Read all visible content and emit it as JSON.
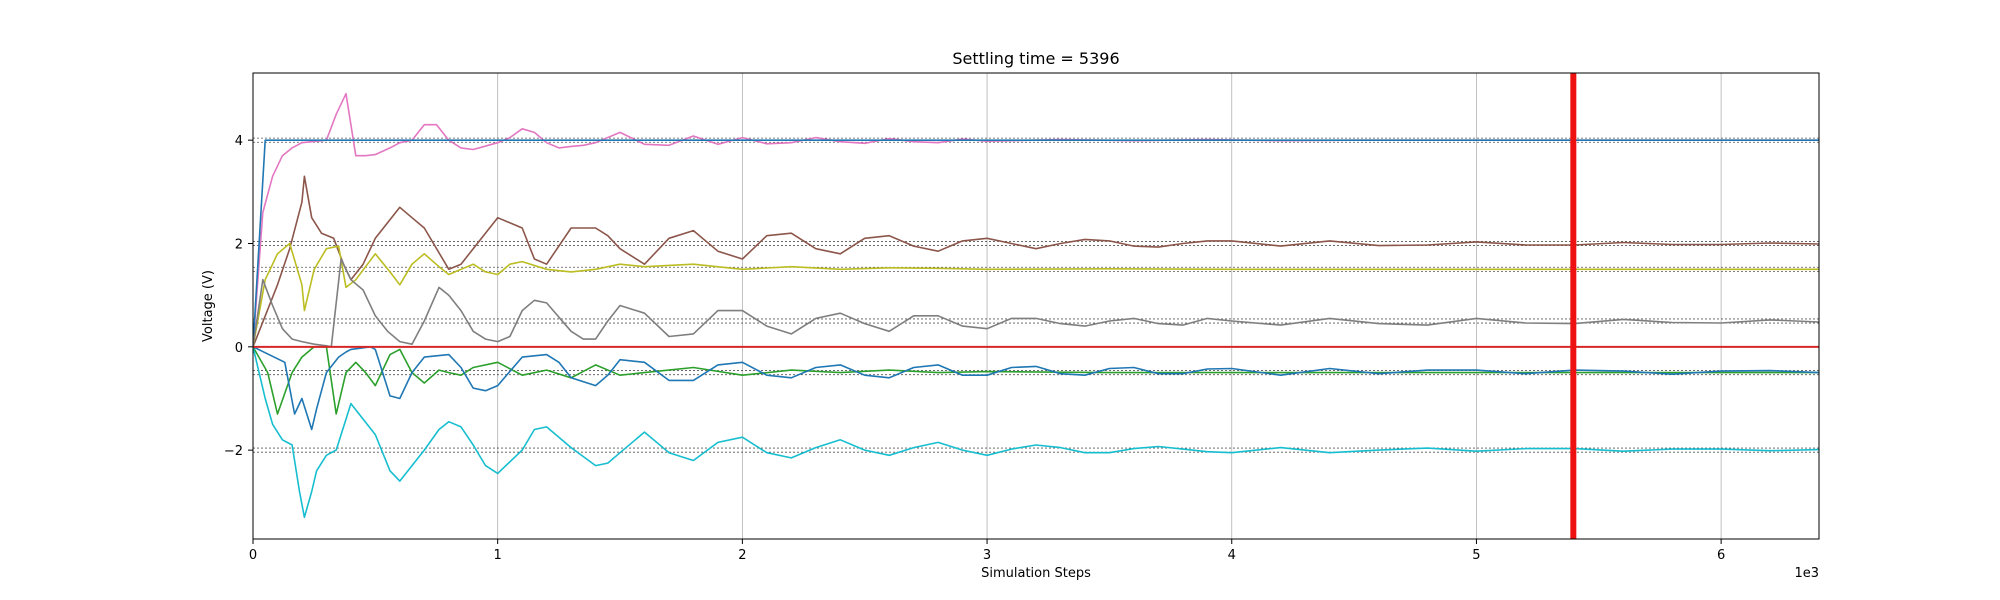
{
  "chart_data": {
    "type": "line",
    "title": "Settling time = 5396",
    "xlabel": "Simulation Steps",
    "ylabel": "Voltage (V)",
    "x_offset_label": "1e3",
    "xlim": [
      0,
      6400
    ],
    "ylim": [
      -3.72,
      5.3
    ],
    "x_ticks": [
      0,
      1000,
      2000,
      3000,
      4000,
      5000,
      6000
    ],
    "x_tick_labels": [
      "0",
      "1",
      "2",
      "3",
      "4",
      "5",
      "6"
    ],
    "y_ticks": [
      -2,
      0,
      2,
      4
    ],
    "y_tick_labels": [
      "−2",
      "0",
      "2",
      "4"
    ],
    "grid": "vertical",
    "legend": "none",
    "settling_time": 5396,
    "targets": [
      4,
      2,
      1.5,
      0.5,
      -0.5,
      -2
    ],
    "zero_line_color": "#d62728",
    "marker_color": "#ee1111",
    "series": [
      {
        "color": "#e377c2",
        "x": [
          0,
          40,
          80,
          120,
          160,
          200,
          260,
          300,
          340,
          380,
          420,
          460,
          500,
          560,
          600,
          650,
          700,
          750,
          800,
          850,
          900,
          1000,
          1050,
          1100,
          1150,
          1200,
          1250,
          1300,
          1350,
          1400,
          1500,
          1600,
          1700,
          1800,
          1900,
          2000,
          2100,
          2200,
          2300,
          2400,
          2500,
          2600,
          2700,
          2800,
          2900,
          3000,
          3300,
          3600,
          3900,
          4200,
          4500,
          5000,
          5500,
          6000,
          6400
        ],
        "y": [
          0,
          2.6,
          3.3,
          3.7,
          3.85,
          3.95,
          3.98,
          4.0,
          4.5,
          4.9,
          3.7,
          3.7,
          3.72,
          3.85,
          3.95,
          4.0,
          4.3,
          4.3,
          4.0,
          3.85,
          3.82,
          3.95,
          4.05,
          4.22,
          4.15,
          3.95,
          3.85,
          3.88,
          3.9,
          3.95,
          4.15,
          3.92,
          3.9,
          4.08,
          3.92,
          4.05,
          3.93,
          3.95,
          4.05,
          3.97,
          3.94,
          4.03,
          3.97,
          3.95,
          4.02,
          3.98,
          4.01,
          3.99,
          4.01,
          3.99,
          4.0,
          4.0,
          4.0,
          4.0,
          4.0
        ]
      },
      {
        "color": "#1f77b4",
        "x": [
          0,
          50,
          6400
        ],
        "y": [
          0,
          4.0,
          4.0
        ]
      },
      {
        "color": "#8c564b",
        "x": [
          0,
          100,
          150,
          200,
          210,
          240,
          280,
          330,
          370,
          400,
          450,
          500,
          600,
          650,
          700,
          800,
          850,
          900,
          1000,
          1100,
          1150,
          1200,
          1300,
          1400,
          1450,
          1500,
          1600,
          1700,
          1800,
          1900,
          2000,
          2100,
          2200,
          2300,
          2400,
          2500,
          2600,
          2700,
          2800,
          2900,
          3000,
          3100,
          3200,
          3300,
          3400,
          3500,
          3600,
          3700,
          3800,
          3900,
          4000,
          4200,
          4400,
          4600,
          4800,
          5000,
          5200,
          5400,
          5600,
          5800,
          6000,
          6200,
          6400
        ],
        "y": [
          0,
          1.2,
          1.9,
          2.8,
          3.3,
          2.5,
          2.2,
          2.1,
          1.6,
          1.3,
          1.6,
          2.1,
          2.7,
          2.5,
          2.3,
          1.5,
          1.6,
          1.9,
          2.5,
          2.3,
          1.7,
          1.6,
          2.3,
          2.3,
          2.15,
          1.9,
          1.6,
          2.1,
          2.25,
          1.85,
          1.7,
          2.15,
          2.2,
          1.9,
          1.8,
          2.1,
          2.15,
          1.95,
          1.85,
          2.05,
          2.1,
          2.0,
          1.9,
          2.0,
          2.08,
          2.05,
          1.95,
          1.93,
          2.0,
          2.05,
          2.05,
          1.95,
          2.05,
          1.96,
          1.97,
          2.03,
          1.97,
          1.97,
          2.02,
          1.98,
          1.98,
          2.01,
          1.99
        ]
      },
      {
        "color": "#bcbd22",
        "x": [
          0,
          50,
          100,
          150,
          200,
          210,
          250,
          300,
          350,
          380,
          420,
          500,
          560,
          600,
          650,
          700,
          760,
          800,
          850,
          900,
          950,
          1000,
          1050,
          1100,
          1200,
          1300,
          1400,
          1500,
          1600,
          1800,
          2000,
          2200,
          2400,
          2600,
          2800,
          3000,
          3500,
          4000,
          4500,
          5000,
          5500,
          6000,
          6400
        ],
        "y": [
          0,
          1.3,
          1.8,
          2.0,
          1.2,
          0.7,
          1.5,
          1.9,
          1.95,
          1.15,
          1.3,
          1.8,
          1.45,
          1.2,
          1.6,
          1.8,
          1.55,
          1.4,
          1.5,
          1.6,
          1.45,
          1.4,
          1.6,
          1.65,
          1.5,
          1.45,
          1.5,
          1.6,
          1.55,
          1.6,
          1.5,
          1.55,
          1.5,
          1.53,
          1.52,
          1.5,
          1.51,
          1.5,
          1.5,
          1.5,
          1.5,
          1.5,
          1.5
        ]
      },
      {
        "color": "#7f7f7f",
        "x": [
          0,
          40,
          80,
          120,
          160,
          200,
          250,
          300,
          320,
          360,
          400,
          450,
          500,
          550,
          600,
          650,
          700,
          760,
          800,
          850,
          900,
          950,
          1000,
          1050,
          1100,
          1150,
          1200,
          1300,
          1350,
          1400,
          1450,
          1500,
          1600,
          1700,
          1800,
          1900,
          2000,
          2100,
          2200,
          2300,
          2400,
          2500,
          2600,
          2700,
          2800,
          2900,
          3000,
          3100,
          3200,
          3300,
          3400,
          3500,
          3600,
          3700,
          3800,
          3900,
          4000,
          4200,
          4400,
          4600,
          4800,
          5000,
          5200,
          5400,
          5600,
          5800,
          6000,
          6200,
          6400
        ],
        "y": [
          0,
          1.3,
          0.8,
          0.35,
          0.15,
          0.1,
          0.05,
          0.02,
          0.0,
          1.7,
          1.3,
          1.1,
          0.6,
          0.3,
          0.1,
          0.05,
          0.5,
          1.15,
          1.0,
          0.7,
          0.3,
          0.15,
          0.1,
          0.2,
          0.7,
          0.9,
          0.85,
          0.3,
          0.15,
          0.15,
          0.5,
          0.8,
          0.65,
          0.2,
          0.25,
          0.7,
          0.7,
          0.4,
          0.25,
          0.55,
          0.65,
          0.45,
          0.3,
          0.6,
          0.6,
          0.4,
          0.35,
          0.55,
          0.55,
          0.45,
          0.4,
          0.5,
          0.55,
          0.45,
          0.42,
          0.55,
          0.5,
          0.42,
          0.55,
          0.45,
          0.42,
          0.55,
          0.46,
          0.45,
          0.53,
          0.47,
          0.46,
          0.52,
          0.48
        ]
      },
      {
        "color": "#2ca02c",
        "x": [
          0,
          60,
          100,
          160,
          200,
          250,
          300,
          340,
          380,
          420,
          460,
          500,
          560,
          600,
          650,
          700,
          760,
          800,
          850,
          900,
          1000,
          1100,
          1200,
          1300,
          1400,
          1500,
          1600,
          1800,
          2000,
          2200,
          2400,
          2600,
          2800,
          3000,
          3500,
          4000,
          4500,
          5000,
          5500,
          6000,
          6400
        ],
        "y": [
          0,
          -0.5,
          -1.3,
          -0.5,
          -0.2,
          0.0,
          0.0,
          -1.3,
          -0.5,
          -0.3,
          -0.5,
          -0.75,
          -0.15,
          -0.05,
          -0.5,
          -0.7,
          -0.45,
          -0.5,
          -0.55,
          -0.4,
          -0.3,
          -0.55,
          -0.45,
          -0.6,
          -0.35,
          -0.55,
          -0.5,
          -0.4,
          -0.55,
          -0.45,
          -0.5,
          -0.45,
          -0.5,
          -0.48,
          -0.5,
          -0.5,
          -0.5,
          -0.5,
          -0.5,
          -0.5,
          -0.5
        ]
      },
      {
        "color": "#1f77b4",
        "x": [
          0,
          130,
          170,
          200,
          240,
          260,
          300,
          350,
          380,
          400,
          450,
          480,
          500,
          560,
          600,
          650,
          700,
          800,
          850,
          900,
          950,
          1000,
          1100,
          1200,
          1250,
          1300,
          1400,
          1450,
          1500,
          1600,
          1700,
          1800,
          1900,
          2000,
          2100,
          2200,
          2300,
          2400,
          2500,
          2600,
          2700,
          2800,
          2900,
          3000,
          3100,
          3200,
          3300,
          3400,
          3500,
          3600,
          3700,
          3800,
          3900,
          4000,
          4200,
          4400,
          4600,
          4800,
          5000,
          5200,
          5400,
          5600,
          5800,
          6000,
          6200,
          6400
        ],
        "y": [
          0,
          -0.3,
          -1.3,
          -1.0,
          -1.6,
          -1.2,
          -0.5,
          -0.2,
          -0.1,
          -0.05,
          -0.02,
          0.0,
          -0.05,
          -0.95,
          -1.0,
          -0.5,
          -0.2,
          -0.15,
          -0.4,
          -0.8,
          -0.85,
          -0.75,
          -0.2,
          -0.15,
          -0.3,
          -0.6,
          -0.75,
          -0.55,
          -0.25,
          -0.3,
          -0.65,
          -0.65,
          -0.35,
          -0.3,
          -0.55,
          -0.6,
          -0.4,
          -0.35,
          -0.55,
          -0.6,
          -0.4,
          -0.35,
          -0.55,
          -0.55,
          -0.4,
          -0.38,
          -0.52,
          -0.55,
          -0.42,
          -0.4,
          -0.52,
          -0.52,
          -0.43,
          -0.42,
          -0.55,
          -0.42,
          -0.52,
          -0.45,
          -0.45,
          -0.52,
          -0.45,
          -0.47,
          -0.53,
          -0.47,
          -0.46,
          -0.5
        ]
      },
      {
        "color": "#17becf",
        "x": [
          0,
          50,
          80,
          120,
          160,
          190,
          210,
          240,
          260,
          300,
          340,
          400,
          450,
          500,
          560,
          600,
          650,
          700,
          760,
          800,
          850,
          900,
          950,
          1000,
          1100,
          1150,
          1200,
          1300,
          1400,
          1450,
          1500,
          1600,
          1700,
          1800,
          1900,
          2000,
          2100,
          2200,
          2300,
          2400,
          2500,
          2600,
          2700,
          2800,
          2900,
          3000,
          3100,
          3200,
          3300,
          3400,
          3500,
          3600,
          3700,
          3800,
          3900,
          4000,
          4200,
          4400,
          4600,
          4800,
          5000,
          5200,
          5400,
          5600,
          5800,
          6000,
          6200,
          6400
        ],
        "y": [
          0,
          -1.0,
          -1.5,
          -1.8,
          -1.9,
          -2.8,
          -3.3,
          -2.8,
          -2.4,
          -2.1,
          -2.0,
          -1.1,
          -1.4,
          -1.7,
          -2.4,
          -2.6,
          -2.3,
          -2.0,
          -1.6,
          -1.45,
          -1.55,
          -1.9,
          -2.3,
          -2.45,
          -2.0,
          -1.6,
          -1.55,
          -1.95,
          -2.3,
          -2.25,
          -2.05,
          -1.65,
          -2.05,
          -2.2,
          -1.85,
          -1.75,
          -2.05,
          -2.15,
          -1.95,
          -1.8,
          -2.0,
          -2.1,
          -1.95,
          -1.85,
          -2.0,
          -2.1,
          -1.98,
          -1.9,
          -1.95,
          -2.05,
          -2.05,
          -1.97,
          -1.93,
          -1.98,
          -2.03,
          -2.05,
          -1.95,
          -2.05,
          -2.0,
          -1.96,
          -2.02,
          -1.97,
          -1.97,
          -2.02,
          -1.98,
          -1.98,
          -2.01,
          -1.99
        ]
      }
    ]
  }
}
